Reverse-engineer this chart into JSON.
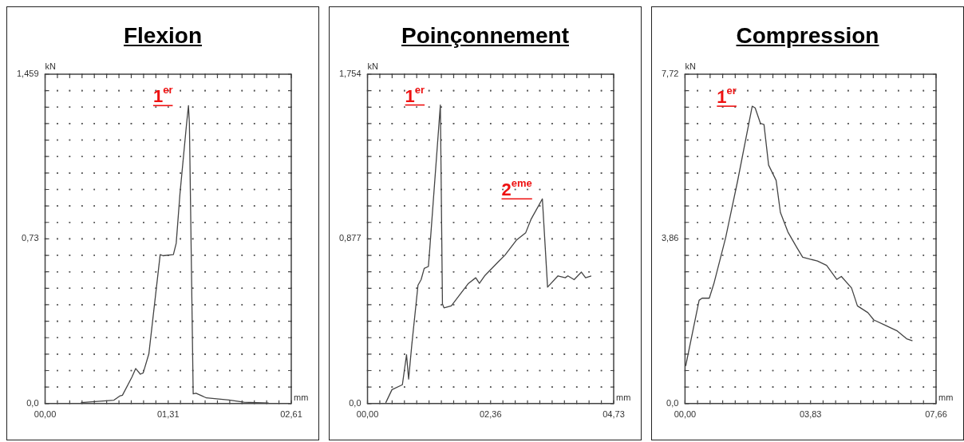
{
  "chart_data": [
    {
      "type": "line",
      "title": "Flexion",
      "xlabel": "mm",
      "ylabel": "kN",
      "marker": "none",
      "grid": true,
      "x": [
        0.38,
        0.73,
        0.79,
        0.82,
        0.92,
        0.96,
        1.01,
        1.04,
        1.1,
        1.16,
        1.22,
        1.25,
        1.36,
        1.39,
        1.43,
        1.5,
        1.52,
        1.53,
        1.57,
        1.6,
        1.71,
        1.95,
        2.11,
        2.37
      ],
      "series": [
        {
          "color": "#444444",
          "values": [
            0.004,
            0.015,
            0.033,
            0.037,
            0.117,
            0.155,
            0.13,
            0.136,
            0.22,
            0.44,
            0.66,
            0.655,
            0.66,
            0.71,
            0.93,
            1.24,
            1.32,
            1.24,
            0.043,
            0.046,
            0.025,
            0.016,
            0.006,
            0.002
          ]
        }
      ],
      "xlim": [
        0,
        2.61
      ],
      "ylim": [
        0,
        1.459
      ],
      "xticks": [
        {
          "value": 0,
          "label": "00,00"
        },
        {
          "value": 0.1305,
          "label": null
        },
        {
          "value": 0.261,
          "label": null
        },
        {
          "value": 0.3915,
          "label": null
        },
        {
          "value": 0.522,
          "label": null
        },
        {
          "value": 0.6525,
          "label": null
        },
        {
          "value": 0.783,
          "label": null
        },
        {
          "value": 0.9135,
          "label": null
        },
        {
          "value": 1.044,
          "label": null
        },
        {
          "value": 1.1745,
          "label": null
        },
        {
          "value": 1.305,
          "label": "01,31"
        },
        {
          "value": 1.4355,
          "label": null
        },
        {
          "value": 1.566,
          "label": null
        },
        {
          "value": 1.6965,
          "label": null
        },
        {
          "value": 1.827,
          "label": null
        },
        {
          "value": 1.9575,
          "label": null
        },
        {
          "value": 2.088,
          "label": null
        },
        {
          "value": 2.2185,
          "label": null
        },
        {
          "value": 2.349,
          "label": null
        },
        {
          "value": 2.4795,
          "label": null
        },
        {
          "value": 2.61,
          "label": "02,61"
        }
      ],
      "yticks": [
        {
          "value": 0,
          "label": "0,0"
        },
        {
          "value": 0.07295,
          "label": null
        },
        {
          "value": 0.1459,
          "label": null
        },
        {
          "value": 0.21885,
          "label": null
        },
        {
          "value": 0.2918,
          "label": null
        },
        {
          "value": 0.36475,
          "label": null
        },
        {
          "value": 0.4377,
          "label": null
        },
        {
          "value": 0.51065,
          "label": null
        },
        {
          "value": 0.5836,
          "label": null
        },
        {
          "value": 0.65655,
          "label": null
        },
        {
          "value": 0.7295,
          "label": "0,73"
        },
        {
          "value": 0.80245,
          "label": null
        },
        {
          "value": 0.8754,
          "label": null
        },
        {
          "value": 0.94835,
          "label": null
        },
        {
          "value": 1.0213,
          "label": null
        },
        {
          "value": 1.09425,
          "label": null
        },
        {
          "value": 1.1672,
          "label": null
        },
        {
          "value": 1.24015,
          "label": null
        },
        {
          "value": 1.3131,
          "label": null
        },
        {
          "value": 1.38605,
          "label": null
        },
        {
          "value": 1.459,
          "label": "1,459"
        }
      ],
      "annotations": [
        {
          "text": "1$^{er}$",
          "x": 1.52,
          "y": 1.32
        }
      ]
    },
    {
      "type": "line",
      "title": "Poinçonnement",
      "xlabel": "mm",
      "ylabel": "kN",
      "marker": "none",
      "grid": true,
      "x": [
        0.35,
        0.47,
        0.67,
        0.75,
        0.79,
        0.85,
        0.97,
        1.03,
        1.09,
        1.17,
        1.19,
        1.4,
        1.44,
        1.47,
        1.61,
        1.94,
        2.08,
        2.15,
        2.25,
        2.53,
        2.64,
        2.86,
        3.04,
        3.14,
        3.36,
        3.46,
        3.66,
        3.8,
        3.85,
        3.97,
        4.11,
        4.19,
        4.3
      ],
      "series": [
        {
          "color": "#444444",
          "values": [
            0.004,
            0.074,
            0.1,
            0.26,
            0.13,
            0.31,
            0.63,
            0.66,
            0.72,
            0.73,
            0.8,
            1.59,
            0.53,
            0.51,
            0.52,
            0.64,
            0.67,
            0.64,
            0.68,
            0.76,
            0.79,
            0.87,
            0.91,
            0.98,
            1.09,
            0.62,
            0.68,
            0.67,
            0.68,
            0.66,
            0.7,
            0.67,
            0.68
          ]
        }
      ],
      "xlim": [
        0,
        4.73
      ],
      "ylim": [
        0,
        1.754
      ],
      "xticks": [
        {
          "value": 0,
          "label": "00,00"
        },
        {
          "value": 0.2365,
          "label": null
        },
        {
          "value": 0.473,
          "label": null
        },
        {
          "value": 0.7095,
          "label": null
        },
        {
          "value": 0.946,
          "label": null
        },
        {
          "value": 1.1825,
          "label": null
        },
        {
          "value": 1.419,
          "label": null
        },
        {
          "value": 1.6555,
          "label": null
        },
        {
          "value": 1.892,
          "label": null
        },
        {
          "value": 2.1285,
          "label": null
        },
        {
          "value": 2.365,
          "label": "02,36"
        },
        {
          "value": 2.6015,
          "label": null
        },
        {
          "value": 2.838,
          "label": null
        },
        {
          "value": 3.0745,
          "label": null
        },
        {
          "value": 3.311,
          "label": null
        },
        {
          "value": 3.5475,
          "label": null
        },
        {
          "value": 3.784,
          "label": null
        },
        {
          "value": 4.0205,
          "label": null
        },
        {
          "value": 4.257,
          "label": null
        },
        {
          "value": 4.4935,
          "label": null
        },
        {
          "value": 4.73,
          "label": "04,73"
        }
      ],
      "yticks": [
        {
          "value": 0,
          "label": "0,0"
        },
        {
          "value": 0.0877,
          "label": null
        },
        {
          "value": 0.1754,
          "label": null
        },
        {
          "value": 0.2631,
          "label": null
        },
        {
          "value": 0.3508,
          "label": null
        },
        {
          "value": 0.4385,
          "label": null
        },
        {
          "value": 0.5262,
          "label": null
        },
        {
          "value": 0.6139,
          "label": null
        },
        {
          "value": 0.7016,
          "label": null
        },
        {
          "value": 0.7893,
          "label": null
        },
        {
          "value": 0.877,
          "label": "0,877"
        },
        {
          "value": 0.9647,
          "label": null
        },
        {
          "value": 1.0524,
          "label": null
        },
        {
          "value": 1.1401,
          "label": null
        },
        {
          "value": 1.2278,
          "label": null
        },
        {
          "value": 1.3155,
          "label": null
        },
        {
          "value": 1.4032,
          "label": null
        },
        {
          "value": 1.4909,
          "label": null
        },
        {
          "value": 1.5786,
          "label": null
        },
        {
          "value": 1.6663,
          "label": null
        },
        {
          "value": 1.754,
          "label": "1,754"
        }
      ],
      "annotations": [
        {
          "text": "1$^{er}$",
          "x": 1.4,
          "y": 1.59
        },
        {
          "text": "2$^{eme}$",
          "x": 3.36,
          "y": 1.09
        }
      ]
    },
    {
      "type": "line",
      "title": "Compression",
      "xlabel": "mm",
      "ylabel": "kN",
      "marker": "none",
      "grid": true,
      "x": [
        0.02,
        0.43,
        0.52,
        0.74,
        0.88,
        1.24,
        1.6,
        2.05,
        2.14,
        2.3,
        2.41,
        2.55,
        2.78,
        2.91,
        3.14,
        3.41,
        3.59,
        4.04,
        4.32,
        4.63,
        4.77,
        5.08,
        5.26,
        5.58,
        5.76,
        6.12,
        6.48,
        6.76,
        6.94
      ],
      "series": [
        {
          "color": "#444444",
          "values": [
            0.88,
            2.42,
            2.47,
            2.47,
            2.81,
            3.89,
            5.2,
            6.97,
            6.93,
            6.57,
            6.54,
            5.59,
            5.23,
            4.48,
            4.02,
            3.66,
            3.43,
            3.34,
            3.24,
            2.91,
            2.98,
            2.71,
            2.29,
            2.13,
            1.96,
            1.83,
            1.7,
            1.52,
            1.47
          ]
        }
      ],
      "xlim": [
        0,
        7.66
      ],
      "ylim": [
        0,
        7.72
      ],
      "xticks": [
        {
          "value": 0,
          "label": "00,00"
        },
        {
          "value": 0.383,
          "label": null
        },
        {
          "value": 0.766,
          "label": null
        },
        {
          "value": 1.149,
          "label": null
        },
        {
          "value": 1.532,
          "label": null
        },
        {
          "value": 1.915,
          "label": null
        },
        {
          "value": 2.298,
          "label": null
        },
        {
          "value": 2.681,
          "label": null
        },
        {
          "value": 3.064,
          "label": null
        },
        {
          "value": 3.447,
          "label": null
        },
        {
          "value": 3.83,
          "label": "03,83"
        },
        {
          "value": 4.213,
          "label": null
        },
        {
          "value": 4.596,
          "label": null
        },
        {
          "value": 4.979,
          "label": null
        },
        {
          "value": 5.362,
          "label": null
        },
        {
          "value": 5.745,
          "label": null
        },
        {
          "value": 6.128,
          "label": null
        },
        {
          "value": 6.511,
          "label": null
        },
        {
          "value": 6.894,
          "label": null
        },
        {
          "value": 7.277,
          "label": null
        },
        {
          "value": 7.66,
          "label": "07,66"
        }
      ],
      "yticks": [
        {
          "value": 0,
          "label": "0,0"
        },
        {
          "value": 0.386,
          "label": null
        },
        {
          "value": 0.772,
          "label": null
        },
        {
          "value": 1.158,
          "label": null
        },
        {
          "value": 1.544,
          "label": null
        },
        {
          "value": 1.93,
          "label": null
        },
        {
          "value": 2.316,
          "label": null
        },
        {
          "value": 2.702,
          "label": null
        },
        {
          "value": 3.088,
          "label": null
        },
        {
          "value": 3.474,
          "label": null
        },
        {
          "value": 3.86,
          "label": "3,86"
        },
        {
          "value": 4.246,
          "label": null
        },
        {
          "value": 4.632,
          "label": null
        },
        {
          "value": 5.018,
          "label": null
        },
        {
          "value": 5.404,
          "label": null
        },
        {
          "value": 5.79,
          "label": null
        },
        {
          "value": 6.176,
          "label": null
        },
        {
          "value": 6.562,
          "label": null
        },
        {
          "value": 6.948,
          "label": null
        },
        {
          "value": 7.334,
          "label": null
        },
        {
          "value": 7.72,
          "label": "7,72"
        }
      ],
      "annotations": [
        {
          "text": "1$^{er}$",
          "x": 2.05,
          "y": 6.97
        }
      ]
    }
  ]
}
